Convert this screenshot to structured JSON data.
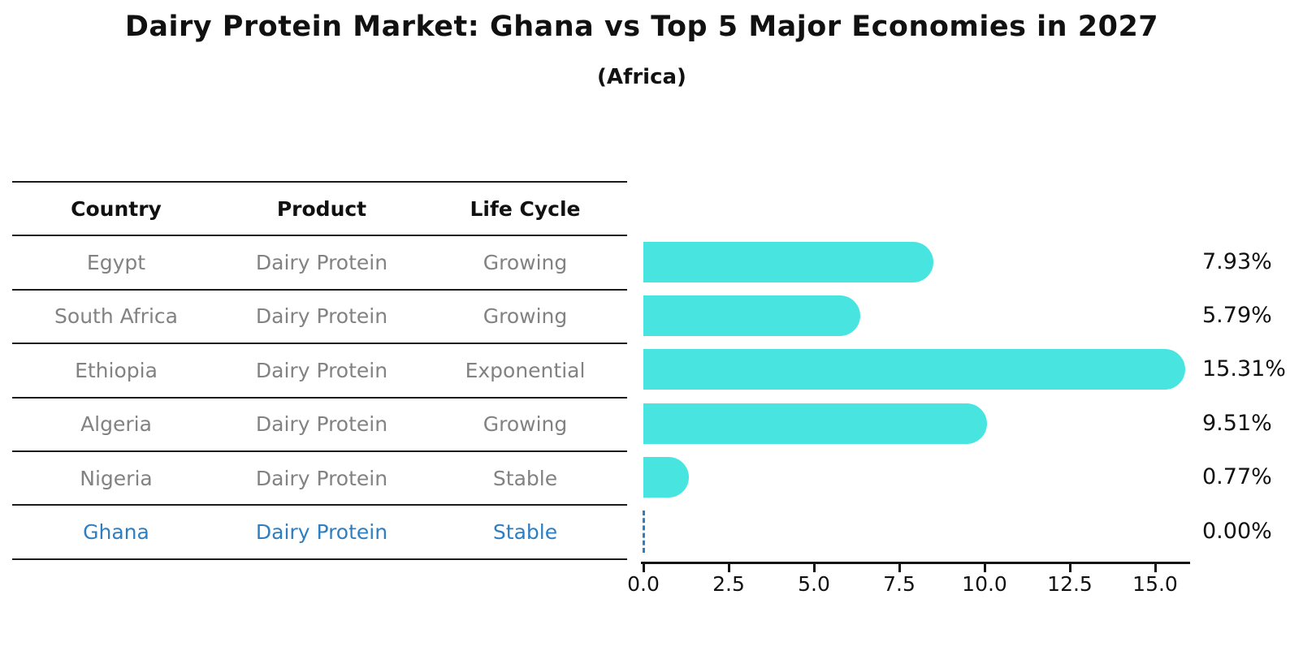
{
  "title": "Dairy Protein Market: Ghana vs Top 5 Major Economies in 2027",
  "subtitle": "(Africa)",
  "table": {
    "headers": [
      "Country",
      "Product",
      "Life Cycle"
    ],
    "rows": [
      {
        "country": "Egypt",
        "product": "Dairy Protein",
        "life_cycle": "Growing",
        "highlight": false
      },
      {
        "country": "South Africa",
        "product": "Dairy Protein",
        "life_cycle": "Growing",
        "highlight": false
      },
      {
        "country": "Ethiopia",
        "product": "Dairy Protein",
        "life_cycle": "Exponential",
        "highlight": false
      },
      {
        "country": "Algeria",
        "product": "Dairy Protein",
        "life_cycle": "Growing",
        "highlight": false
      },
      {
        "country": "Nigeria",
        "product": "Dairy Protein",
        "life_cycle": "Stable",
        "highlight": false
      },
      {
        "country": "Ghana",
        "product": "Dairy Protein",
        "life_cycle": "Stable",
        "highlight": true
      }
    ]
  },
  "chart_data": {
    "type": "bar",
    "orientation": "horizontal",
    "title": "Dairy Protein Market: Ghana vs Top 5 Major Economies in 2027 (Africa)",
    "categories": [
      "Egypt",
      "South Africa",
      "Ethiopia",
      "Algeria",
      "Nigeria",
      "Ghana"
    ],
    "values": [
      7.93,
      5.79,
      15.31,
      9.51,
      0.77,
      0.0
    ],
    "value_labels": [
      "7.93%",
      "5.79%",
      "15.31%",
      "9.51%",
      "0.77%",
      "0.00%"
    ],
    "xlabel": "",
    "ylabel": "",
    "xlim": [
      0,
      16
    ],
    "x_ticks": [
      0.0,
      2.5,
      5.0,
      7.5,
      10.0,
      12.5,
      15.0
    ],
    "x_tick_labels": [
      "0.0",
      "2.5",
      "5.0",
      "7.5",
      "10.0",
      "12.5",
      "15.0"
    ],
    "grid": false,
    "legend": false,
    "highlight_index": 5,
    "zero_marker_style": "dashed-line"
  },
  "colors": {
    "bar_fill": "#48E5E0",
    "highlight_blue": "#2e7fc2",
    "text_dark": "#111111",
    "text_gray": "#828282",
    "background": "#ffffff"
  }
}
